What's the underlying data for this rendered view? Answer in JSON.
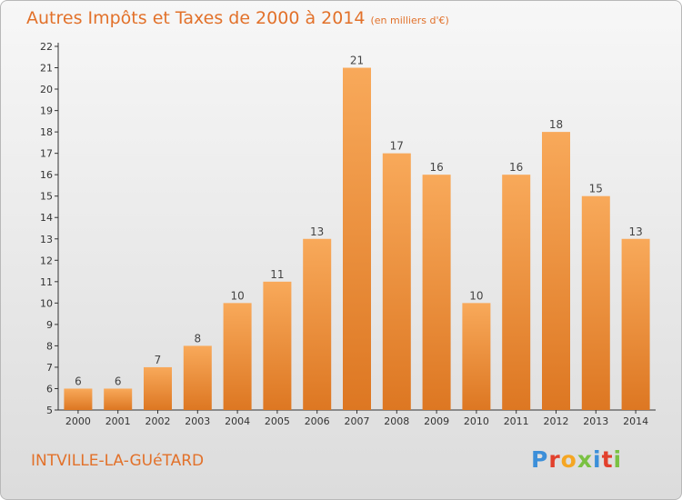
{
  "header": {
    "title": "Autres Impôts et Taxes de 2000 à 2014",
    "unit": "(en milliers d'€)"
  },
  "footer": {
    "commune": "INTVILLE-LA-GUéTARD",
    "logo": [
      "P",
      "r",
      "o",
      "x",
      "i",
      "t",
      "i"
    ]
  },
  "colors": {
    "bar_top": "#f8a95a",
    "bar_bottom": "#dd7722",
    "text_orange": "#e2712a",
    "logo": [
      "#3c8fd9",
      "#e2402c",
      "#f5a623",
      "#7ac142",
      "#3c8fd9",
      "#e2402c",
      "#7ac142"
    ]
  },
  "chart_data": {
    "type": "bar",
    "title": "Autres Impôts et Taxes de 2000 à 2014",
    "ylabel": "(en milliers d'€)",
    "categories": [
      "2000",
      "2001",
      "2002",
      "2003",
      "2004",
      "2005",
      "2006",
      "2007",
      "2008",
      "2009",
      "2010",
      "2011",
      "2012",
      "2013",
      "2014"
    ],
    "values": [
      6,
      6,
      7,
      8,
      10,
      11,
      13,
      21,
      17,
      16,
      10,
      16,
      18,
      15,
      13
    ],
    "ylim": [
      5,
      22
    ],
    "yticks": [
      5,
      6,
      7,
      8,
      9,
      10,
      11,
      12,
      13,
      14,
      15,
      16,
      17,
      18,
      19,
      20,
      21,
      22
    ],
    "grid": false,
    "legend": "none"
  }
}
